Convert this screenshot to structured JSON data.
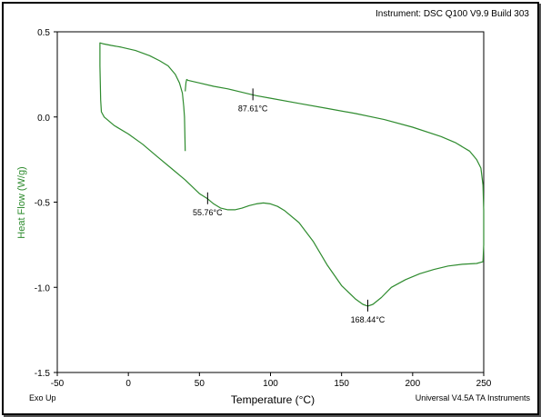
{
  "header": {
    "instrument": "Instrument: DSC Q100 V9.9 Build 303"
  },
  "footer": {
    "left": "Exo Up",
    "right": "Universal V4.5A TA Instruments"
  },
  "colors": {
    "curve": "#2e8b2e",
    "ylabel": "#2e8b2e",
    "axis": "#000000"
  },
  "chart_data": {
    "type": "line",
    "title": "",
    "xlabel": "Temperature (°C)",
    "ylabel": "Heat Flow (W/g)",
    "xlim": [
      -50,
      250
    ],
    "ylim": [
      -1.5,
      0.5
    ],
    "xticks": [
      -50,
      0,
      50,
      100,
      150,
      200,
      250
    ],
    "yticks": [
      0.5,
      0.0,
      -0.5,
      -1.0,
      -1.5
    ],
    "ytick_labels": [
      "0.5",
      "0.0",
      "-0.5",
      "-1.0",
      "-1.5"
    ],
    "grid": false,
    "series": [
      {
        "values": [
          [
            40,
            -0.2
          ],
          [
            39.8,
            -0.12
          ],
          [
            39.5,
            0.0
          ],
          [
            39,
            0.06
          ],
          [
            38,
            0.14
          ],
          [
            36,
            0.2
          ],
          [
            33,
            0.25
          ],
          [
            28,
            0.3
          ],
          [
            22,
            0.33
          ],
          [
            15,
            0.36
          ],
          [
            5,
            0.39
          ],
          [
            -5,
            0.41
          ],
          [
            -12,
            0.42
          ],
          [
            -18,
            0.43
          ],
          [
            -20,
            0.435
          ],
          [
            -20,
            0.3
          ],
          [
            -19.5,
            0.1
          ],
          [
            -19,
            0.03
          ],
          [
            -17,
            0.0
          ],
          [
            -10,
            -0.05
          ],
          [
            0,
            -0.1
          ],
          [
            10,
            -0.16
          ],
          [
            20,
            -0.23
          ],
          [
            30,
            -0.3
          ],
          [
            40,
            -0.37
          ],
          [
            50,
            -0.45
          ],
          [
            55.76,
            -0.48
          ],
          [
            60,
            -0.51
          ],
          [
            65,
            -0.535
          ],
          [
            70,
            -0.545
          ],
          [
            75,
            -0.545
          ],
          [
            80,
            -0.535
          ],
          [
            85,
            -0.52
          ],
          [
            90,
            -0.51
          ],
          [
            95,
            -0.505
          ],
          [
            100,
            -0.51
          ],
          [
            105,
            -0.525
          ],
          [
            110,
            -0.55
          ],
          [
            120,
            -0.62
          ],
          [
            130,
            -0.73
          ],
          [
            140,
            -0.87
          ],
          [
            150,
            -0.99
          ],
          [
            160,
            -1.07
          ],
          [
            165,
            -1.1
          ],
          [
            168.44,
            -1.11
          ],
          [
            172,
            -1.1
          ],
          [
            178,
            -1.06
          ],
          [
            185,
            -1.0
          ],
          [
            195,
            -0.955
          ],
          [
            205,
            -0.92
          ],
          [
            215,
            -0.895
          ],
          [
            225,
            -0.875
          ],
          [
            235,
            -0.865
          ],
          [
            245,
            -0.86
          ],
          [
            249.5,
            -0.85
          ],
          [
            250,
            -0.75
          ],
          [
            250,
            -0.55
          ],
          [
            249.5,
            -0.4
          ],
          [
            248,
            -0.3
          ],
          [
            245,
            -0.25
          ],
          [
            240,
            -0.2
          ],
          [
            230,
            -0.15
          ],
          [
            220,
            -0.115
          ],
          [
            200,
            -0.06
          ],
          [
            180,
            -0.015
          ],
          [
            160,
            0.02
          ],
          [
            140,
            0.05
          ],
          [
            120,
            0.08
          ],
          [
            100,
            0.11
          ],
          [
            90,
            0.125
          ],
          [
            87.61,
            0.13
          ],
          [
            80,
            0.145
          ],
          [
            70,
            0.165
          ],
          [
            60,
            0.18
          ],
          [
            50,
            0.2
          ],
          [
            42,
            0.215
          ],
          [
            41,
            0.22
          ],
          [
            40.5,
            0.2
          ],
          [
            40,
            0.15
          ]
        ]
      }
    ],
    "annotations": [
      {
        "x": 87.61,
        "y": 0.13,
        "label": "87.61°C",
        "label_pos": "below"
      },
      {
        "x": 55.76,
        "y": -0.48,
        "label": "55.76°C",
        "label_pos": "below"
      },
      {
        "x": 168.44,
        "y": -1.11,
        "label": "168.44°C",
        "label_pos": "below"
      }
    ]
  }
}
